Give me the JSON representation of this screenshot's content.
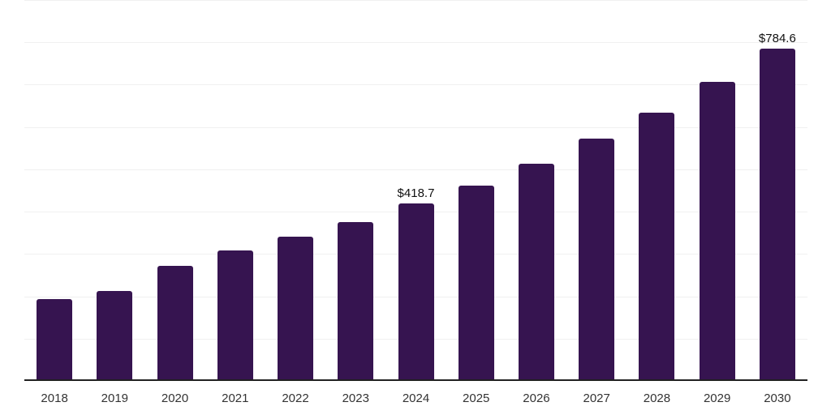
{
  "chart_data": {
    "type": "bar",
    "title": "",
    "xlabel": "",
    "ylabel": "",
    "categories": [
      "2018",
      "2019",
      "2020",
      "2021",
      "2022",
      "2023",
      "2024",
      "2025",
      "2026",
      "2027",
      "2028",
      "2029",
      "2030"
    ],
    "values": [
      194,
      212,
      272,
      309,
      341,
      376,
      418.7,
      462,
      514,
      572,
      634,
      706,
      784.6
    ],
    "data_labels": [
      null,
      null,
      null,
      null,
      null,
      null,
      "$418.7",
      null,
      null,
      null,
      null,
      null,
      "$784.6"
    ],
    "ylim": [
      0,
      900
    ],
    "grid_step": 100,
    "grid": true,
    "legend": false,
    "y_axis_labels_visible": false,
    "colors": {
      "bar": "#361450",
      "axis_line": "#212121",
      "gridline": "#f0f0f0",
      "x_label": "#333333",
      "data_label": "#111111",
      "background": "#ffffff"
    }
  }
}
